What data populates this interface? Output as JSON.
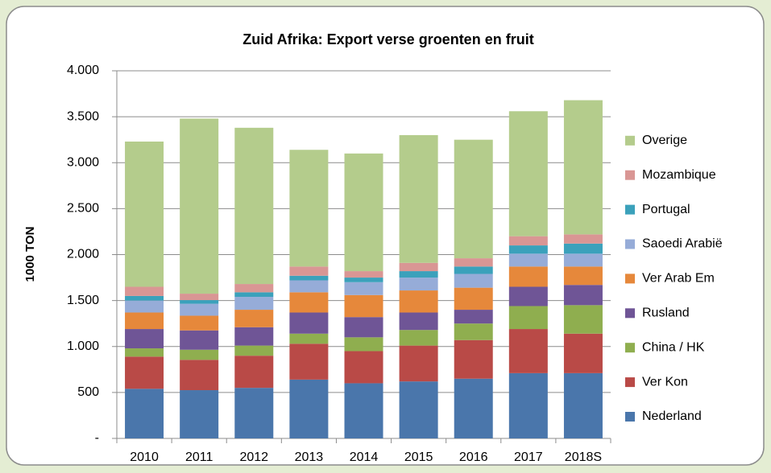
{
  "chart_data": {
    "type": "bar",
    "stacked": true,
    "title": "Zuid Afrika: Export verse groenten en fruit",
    "y_label": "1000 TON",
    "categories": [
      "2010",
      "2011",
      "2012",
      "2013",
      "2014",
      "2015",
      "2016",
      "2017",
      "2018S"
    ],
    "series": [
      {
        "name": "Nederland",
        "color": "#4a76ab",
        "values": [
          540,
          525,
          550,
          640,
          600,
          620,
          650,
          710,
          710
        ]
      },
      {
        "name": "Ver Kon",
        "color": "#b94a47",
        "values": [
          350,
          330,
          350,
          390,
          350,
          390,
          420,
          480,
          430
        ]
      },
      {
        "name": "China / HK",
        "color": "#8fae4f",
        "values": [
          90,
          110,
          110,
          110,
          150,
          170,
          180,
          250,
          310
        ]
      },
      {
        "name": "Rusland",
        "color": "#6f5596",
        "values": [
          210,
          210,
          200,
          230,
          220,
          190,
          150,
          210,
          220
        ]
      },
      {
        "name": "Ver Arab Em",
        "color": "#e6883b",
        "values": [
          180,
          160,
          190,
          220,
          240,
          240,
          240,
          220,
          200
        ]
      },
      {
        "name": "Saoedi Arabië",
        "color": "#96acd8",
        "values": [
          130,
          130,
          140,
          130,
          140,
          140,
          150,
          140,
          140
        ]
      },
      {
        "name": "Portugal",
        "color": "#3ba1bb",
        "values": [
          50,
          40,
          50,
          50,
          50,
          70,
          80,
          90,
          110
        ]
      },
      {
        "name": "Mozambique",
        "color": "#d99694",
        "values": [
          100,
          70,
          90,
          100,
          70,
          90,
          90,
          100,
          100
        ]
      },
      {
        "name": "Overige",
        "color": "#b4cc8c",
        "values": [
          1580,
          1905,
          1700,
          1270,
          1280,
          1390,
          1290,
          1360,
          1460
        ]
      }
    ],
    "ylim": [
      0,
      4000
    ],
    "yticks": [
      {
        "value": 0,
        "label": "-"
      },
      {
        "value": 500,
        "label": "500"
      },
      {
        "value": 1000,
        "label": "1.000"
      },
      {
        "value": 1500,
        "label": "1.500"
      },
      {
        "value": 2000,
        "label": "2.000"
      },
      {
        "value": 2500,
        "label": "2.500"
      },
      {
        "value": 3000,
        "label": "3.000"
      },
      {
        "value": 3500,
        "label": "3.500"
      },
      {
        "value": 4000,
        "label": "4.000"
      }
    ],
    "grid": true,
    "legend": "right"
  }
}
